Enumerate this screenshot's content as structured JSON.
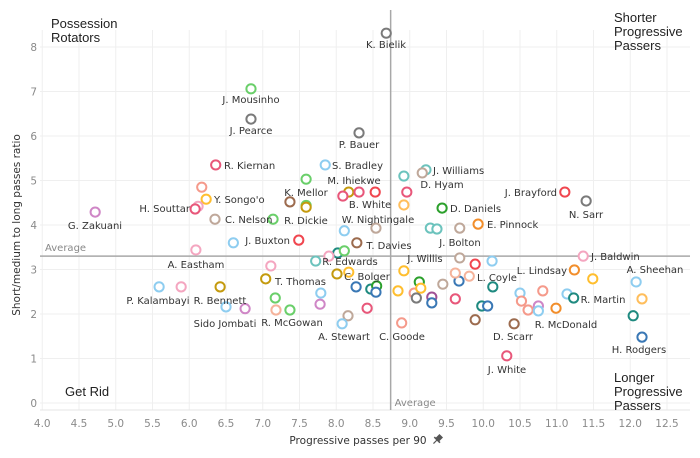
{
  "chart_data": {
    "type": "scatter",
    "title": "",
    "xlabel": "Progressive passes per 90",
    "ylabel": "Short/medium to long passes ratio",
    "xlim": [
      4.0,
      12.8
    ],
    "ylim": [
      0,
      8.5
    ],
    "xticks": [
      "4.0",
      "4.5",
      "5.0",
      "5.5",
      "6.0",
      "6.5",
      "7.0",
      "7.5",
      "8.0",
      "8.5",
      "9.0",
      "9.5",
      "10.0",
      "10.5",
      "11.0",
      "11.5",
      "12.0",
      "12.5"
    ],
    "yticks": [
      "0",
      "1",
      "2",
      "3",
      "4",
      "5",
      "6",
      "7",
      "8"
    ],
    "grid": true,
    "average": {
      "label": "Average",
      "x": 8.74,
      "y": 3.3
    },
    "quadrants": {
      "top_left": [
        "Possession",
        "Rotators"
      ],
      "top_right": [
        "Shorter",
        "Progressive",
        "Passers"
      ],
      "bottom_left": [
        "Get Rid"
      ],
      "bottom_right": [
        "Longer",
        "Progressive",
        "Passers"
      ]
    },
    "x_axis_icon": "pin-icon",
    "points": [
      {
        "x": 8.68,
        "y": 8.31,
        "color": "#7a7a7a",
        "label": "K. Bielik"
      },
      {
        "x": 6.84,
        "y": 7.06,
        "color": "#6acf6a",
        "label": "J. Mousinho"
      },
      {
        "x": 6.84,
        "y": 6.38,
        "color": "#7a7a7a",
        "label": "J. Pearce"
      },
      {
        "x": 8.31,
        "y": 6.07,
        "color": "#7a7a7a",
        "label": "P. Bauer"
      },
      {
        "x": 6.36,
        "y": 5.35,
        "color": "#e8577a",
        "label": "R. Kiernan"
      },
      {
        "x": 7.85,
        "y": 5.35,
        "color": "#8ecdf0",
        "label": "S. Bradley"
      },
      {
        "x": 9.22,
        "y": 5.24,
        "color": "#6cc3bd",
        "label": "J. Williams"
      },
      {
        "x": 9.17,
        "y": 5.17,
        "color": "#bfa89a",
        "label": "D. Hyam"
      },
      {
        "x": 8.92,
        "y": 5.1,
        "color": "#6cc3bd"
      },
      {
        "x": 7.59,
        "y": 5.03,
        "color": "#6acf6a"
      },
      {
        "x": 6.17,
        "y": 4.85,
        "color": "#f59a8b"
      },
      {
        "x": 8.17,
        "y": 4.74,
        "color": "#c49a0e"
      },
      {
        "x": 8.31,
        "y": 4.74,
        "color": "#e8577a",
        "label": "M. Ihiekwe"
      },
      {
        "x": 8.53,
        "y": 4.74,
        "color": "#f0464f",
        "label": "B. White"
      },
      {
        "x": 8.96,
        "y": 4.74,
        "color": "#e8577a"
      },
      {
        "x": 8.09,
        "y": 4.65,
        "color": "#e8577a"
      },
      {
        "x": 11.11,
        "y": 4.74,
        "color": "#f0464f",
        "label": "J. Brayford"
      },
      {
        "x": 6.23,
        "y": 4.58,
        "color": "#ffbe2e",
        "label": "Y. Songo'o"
      },
      {
        "x": 11.4,
        "y": 4.54,
        "color": "#7a7a7a",
        "label": "N. Sarr"
      },
      {
        "x": 7.37,
        "y": 4.52,
        "color": "#9c6b4e",
        "label": "K. Mellor"
      },
      {
        "x": 7.59,
        "y": 4.44,
        "color": "#6acf6a"
      },
      {
        "x": 7.59,
        "y": 4.4,
        "color": "#c49a0e",
        "label": "R. Dickie"
      },
      {
        "x": 6.12,
        "y": 4.42,
        "color": "#f4a6c0"
      },
      {
        "x": 6.08,
        "y": 4.36,
        "color": "#e8577a",
        "label": "H. Souttar"
      },
      {
        "x": 8.92,
        "y": 4.45,
        "color": "#ffbe5c",
        "label": "W. Nightingale"
      },
      {
        "x": 9.44,
        "y": 4.38,
        "color": "#2ca02c",
        "label": "D. Daniels"
      },
      {
        "x": 4.72,
        "y": 4.29,
        "color": "#cf86c6",
        "label": "G. Zakuani"
      },
      {
        "x": 6.35,
        "y": 4.13,
        "color": "#bfa89a",
        "label": "C. Nelson"
      },
      {
        "x": 7.14,
        "y": 4.13,
        "color": "#6acf6a"
      },
      {
        "x": 9.93,
        "y": 4.02,
        "color": "#f28e2b",
        "label": "E. Pinnock"
      },
      {
        "x": 9.28,
        "y": 3.93,
        "color": "#6cc3bd"
      },
      {
        "x": 9.37,
        "y": 3.91,
        "color": "#6cc3bd"
      },
      {
        "x": 9.68,
        "y": 3.93,
        "color": "#bfa89a",
        "label": "J. Bolton"
      },
      {
        "x": 8.11,
        "y": 3.87,
        "color": "#8ecdf0"
      },
      {
        "x": 8.54,
        "y": 3.93,
        "color": "#bfa89a"
      },
      {
        "x": 6.6,
        "y": 3.6,
        "color": "#8ecdf0"
      },
      {
        "x": 7.49,
        "y": 3.66,
        "color": "#f0464f",
        "label": "J. Buxton"
      },
      {
        "x": 8.28,
        "y": 3.6,
        "color": "#9c6b4e",
        "label": "T. Davies"
      },
      {
        "x": 6.09,
        "y": 3.44,
        "color": "#f4a6c0",
        "label": "A. Eastham"
      },
      {
        "x": 8.02,
        "y": 3.37,
        "color": "#1f8a80",
        "label": "R. Edwards"
      },
      {
        "x": 8.11,
        "y": 3.42,
        "color": "#6acf6a"
      },
      {
        "x": 7.9,
        "y": 3.3,
        "color": "#f4a6c0"
      },
      {
        "x": 7.72,
        "y": 3.19,
        "color": "#6cc3bd"
      },
      {
        "x": 7.11,
        "y": 3.08,
        "color": "#f4a6c0"
      },
      {
        "x": 9.68,
        "y": 3.26,
        "color": "#bfa89a",
        "label": "J. Willis"
      },
      {
        "x": 9.89,
        "y": 3.12,
        "color": "#f0464f"
      },
      {
        "x": 10.12,
        "y": 3.19,
        "color": "#8ecdf0"
      },
      {
        "x": 11.36,
        "y": 3.3,
        "color": "#f4a6c0",
        "label": "J. Baldwin"
      },
      {
        "x": 7.04,
        "y": 2.79,
        "color": "#c49a0e",
        "label": "T. Thomas"
      },
      {
        "x": 11.24,
        "y": 2.99,
        "color": "#f28e2b",
        "label": "L. Lindsay"
      },
      {
        "x": 8.01,
        "y": 2.9,
        "color": "#c49a0e"
      },
      {
        "x": 8.17,
        "y": 2.94,
        "color": "#ffbe2e",
        "label": "C. Bolger"
      },
      {
        "x": 8.92,
        "y": 2.97,
        "color": "#ffbe2e"
      },
      {
        "x": 12.08,
        "y": 2.72,
        "color": "#8ecdf0",
        "label": "A. Sheehan"
      },
      {
        "x": 11.49,
        "y": 2.79,
        "color": "#ffbe2e"
      },
      {
        "x": 5.59,
        "y": 2.61,
        "color": "#8ecdf0",
        "label": "P. Kalambayi"
      },
      {
        "x": 5.89,
        "y": 2.61,
        "color": "#f4a6c0"
      },
      {
        "x": 6.42,
        "y": 2.61,
        "color": "#c49a0e",
        "label": "R. Bennett"
      },
      {
        "x": 7.17,
        "y": 2.36,
        "color": "#6acf6a"
      },
      {
        "x": 7.79,
        "y": 2.47,
        "color": "#8ecdf0"
      },
      {
        "x": 7.78,
        "y": 2.22,
        "color": "#cf86c6"
      },
      {
        "x": 8.27,
        "y": 2.61,
        "color": "#3a78b5"
      },
      {
        "x": 8.47,
        "y": 2.56,
        "color": "#1f8a80"
      },
      {
        "x": 8.55,
        "y": 2.63,
        "color": "#2ca02c"
      },
      {
        "x": 8.54,
        "y": 2.49,
        "color": "#3a78b5"
      },
      {
        "x": 8.84,
        "y": 2.52,
        "color": "#ffbe2e"
      },
      {
        "x": 9.13,
        "y": 2.72,
        "color": "#2ca02c"
      },
      {
        "x": 9.06,
        "y": 2.47,
        "color": "#f59a8b"
      },
      {
        "x": 9.15,
        "y": 2.58,
        "color": "#ffbe2e"
      },
      {
        "x": 9.09,
        "y": 2.36,
        "color": "#7a7a7a"
      },
      {
        "x": 9.45,
        "y": 2.67,
        "color": "#bfa89a"
      },
      {
        "x": 9.3,
        "y": 2.38,
        "color": "#a05195"
      },
      {
        "x": 9.3,
        "y": 2.25,
        "color": "#3a78b5"
      },
      {
        "x": 9.62,
        "y": 2.34,
        "color": "#e8577a"
      },
      {
        "x": 9.67,
        "y": 2.74,
        "color": "#3a78b5"
      },
      {
        "x": 9.62,
        "y": 2.92,
        "color": "#f5b39b"
      },
      {
        "x": 9.81,
        "y": 2.85,
        "color": "#f5b39b",
        "label": "L. Coyle"
      },
      {
        "x": 10.13,
        "y": 2.61,
        "color": "#1f8a80"
      },
      {
        "x": 9.98,
        "y": 2.18,
        "color": "#1f8a80"
      },
      {
        "x": 10.06,
        "y": 2.18,
        "color": "#3a78b5"
      },
      {
        "x": 9.89,
        "y": 1.87,
        "color": "#9c6b4e"
      },
      {
        "x": 7.18,
        "y": 2.09,
        "color": "#f5b39b"
      },
      {
        "x": 7.37,
        "y": 2.09,
        "color": "#6acf6a",
        "label": "R. McGowan"
      },
      {
        "x": 8.42,
        "y": 2.13,
        "color": "#e8577a"
      },
      {
        "x": 8.16,
        "y": 1.96,
        "color": "#bfa89a"
      },
      {
        "x": 8.08,
        "y": 1.78,
        "color": "#8ecdf0",
        "label": "A. Stewart"
      },
      {
        "x": 8.89,
        "y": 1.8,
        "color": "#f59a8b",
        "label": "C. Goode"
      },
      {
        "x": 6.5,
        "y": 2.16,
        "color": "#8ecdf0",
        "label": "Sido Jombati"
      },
      {
        "x": 6.76,
        "y": 2.12,
        "color": "#cf86c6"
      },
      {
        "x": 10.5,
        "y": 2.47,
        "color": "#8ecdf0"
      },
      {
        "x": 10.81,
        "y": 2.52,
        "color": "#f59a8b"
      },
      {
        "x": 11.14,
        "y": 2.45,
        "color": "#8ecdf0"
      },
      {
        "x": 11.23,
        "y": 2.36,
        "color": "#1f8a80"
      },
      {
        "x": 12.16,
        "y": 2.34,
        "color": "#ffbe5c",
        "label": "R. Martin"
      },
      {
        "x": 10.52,
        "y": 2.29,
        "color": "#f59a8b"
      },
      {
        "x": 10.61,
        "y": 2.09,
        "color": "#f59a8b"
      },
      {
        "x": 10.75,
        "y": 2.18,
        "color": "#cf86c6"
      },
      {
        "x": 10.75,
        "y": 2.07,
        "color": "#8ecdf0"
      },
      {
        "x": 10.99,
        "y": 2.13,
        "color": "#f28e2b",
        "label": "R. McDonald"
      },
      {
        "x": 12.04,
        "y": 1.96,
        "color": "#1f8a80"
      },
      {
        "x": 12.16,
        "y": 1.48,
        "color": "#3a78b5",
        "label": "H. Rodgers"
      },
      {
        "x": 10.42,
        "y": 1.78,
        "color": "#9c6b4e",
        "label": "D. Scarr"
      },
      {
        "x": 10.32,
        "y": 1.06,
        "color": "#e8577a",
        "label": "J. White"
      }
    ]
  }
}
